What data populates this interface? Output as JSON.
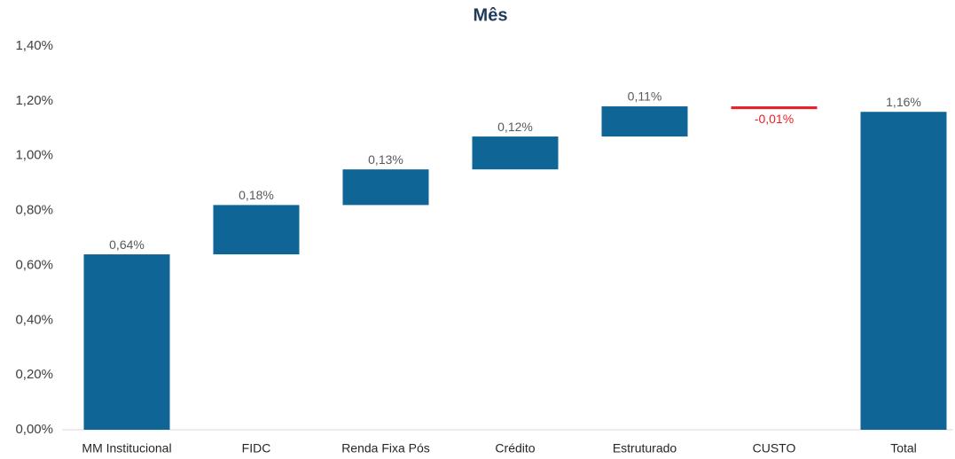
{
  "chart_data": {
    "type": "waterfall",
    "title": "Mês",
    "categories": [
      "MM Institucional",
      "FIDC",
      "Renda Fixa Pós",
      "Crédito",
      "Estruturado",
      "CUSTO",
      "Total"
    ],
    "values": [
      0.64,
      0.18,
      0.13,
      0.12,
      0.11,
      -0.01,
      1.16
    ],
    "value_labels": [
      "0,64%",
      "0,18%",
      "0,13%",
      "0,12%",
      "0,11%",
      "-0,01%",
      "1,16%"
    ],
    "last_is_total": true,
    "color": "#0e6596",
    "negative_color": "#e8202a",
    "ylim": [
      0,
      1.4
    ],
    "yticks": [
      {
        "value": 0,
        "label": "0,00%"
      },
      {
        "value": 0.2,
        "label": "0,20%"
      },
      {
        "value": 0.4,
        "label": "0,40%"
      },
      {
        "value": 0.6,
        "label": "0,60%"
      },
      {
        "value": 0.8,
        "label": "0,80%"
      },
      {
        "value": 1.0,
        "label": "1,00%"
      },
      {
        "value": 1.2,
        "label": "1,20%"
      },
      {
        "value": 1.4,
        "label": "1,40%"
      }
    ],
    "grid": false
  }
}
